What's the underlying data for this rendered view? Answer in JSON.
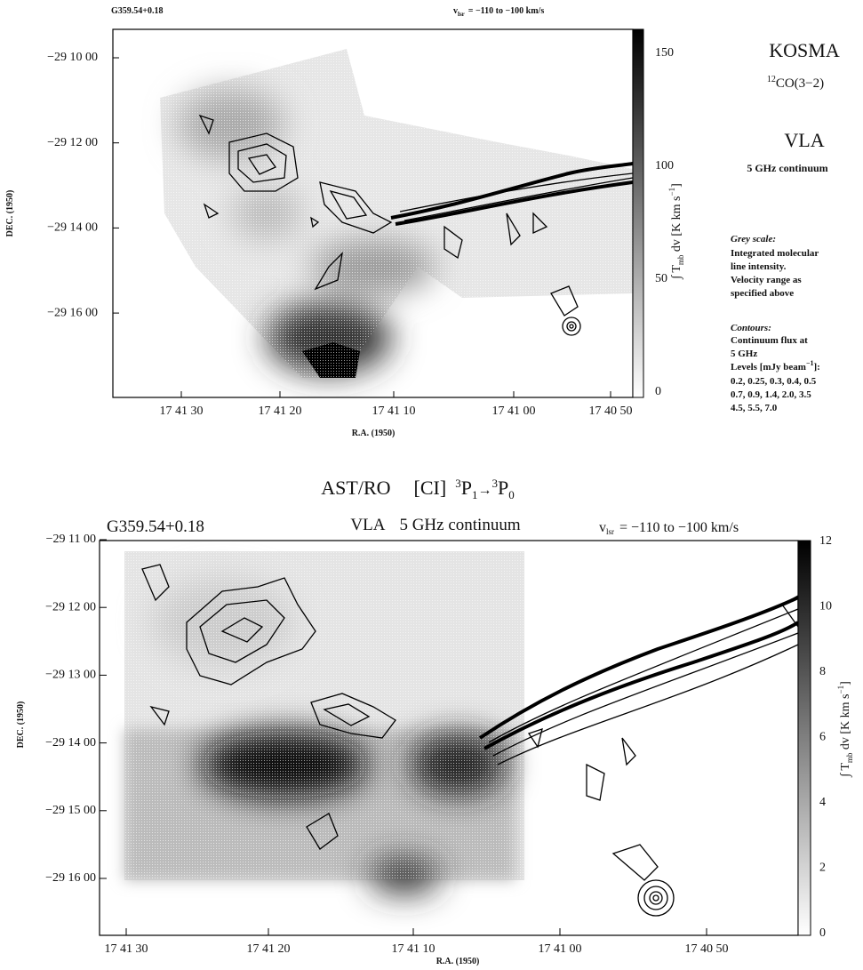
{
  "top_panel": {
    "source": "G359.54+0.18",
    "velocity_symbol": "v",
    "velocity_subscript": "lsr",
    "velocity_range": "= −110 to −100 km/s",
    "y_axis_label": "DEC. (1950)",
    "x_axis_label": "R.A. (1950)",
    "yticks": [
      "−29 10 00",
      "−29 12 00",
      "−29 14 00",
      "−29 16 00"
    ],
    "xticks": [
      "17 41 30",
      "17 41 20",
      "17 41 10",
      "17 41 00",
      "17 40 50"
    ],
    "colorbar_ticks": [
      "150",
      "100",
      "50",
      "0"
    ],
    "colorbar_label": [
      "∫ T",
      "mb",
      " dv  [K km s",
      "−1",
      "]"
    ],
    "legend": {
      "telescope": "KOSMA",
      "line_isotope": "12",
      "line_name": "CO(3−2)",
      "continuum_telescope": "VLA",
      "continuum_band": "5 GHz continuum",
      "grey_scale_heading": "Grey scale:",
      "grey_scale_lines": [
        "Integrated molecular",
        "line intensity.",
        "Velocity range as",
        "specified above"
      ],
      "contours_heading": "Contours:",
      "contour_lines": [
        "Continuum flux at",
        "5 GHz"
      ],
      "levels_label": [
        "Levels [mJy beam",
        "−1",
        "]:"
      ],
      "levels_values": [
        "0.2, 0.25, 0.3, 0.4, 0.5",
        "0.7, 0.9, 1.4, 2.0, 3.5",
        "4.5, 5.5, 7.0"
      ]
    }
  },
  "bottom_panel": {
    "title_telescope": "AST/RO",
    "title_species": "[CI]",
    "title_transition": [
      "3",
      "P",
      "1",
      "→",
      "3",
      "P",
      "0"
    ],
    "source": "G359.54+0.18",
    "continuum_telescope": "VLA",
    "continuum_band": "5 GHz continuum",
    "velocity_symbol": "v",
    "velocity_subscript": "lsr",
    "velocity_range": "= −110 to −100 km/s",
    "y_axis_label": "DEC. (1950)",
    "x_axis_label": "R.A. (1950)",
    "yticks": [
      "−29 11 00",
      "−29 12 00",
      "−29 13 00",
      "−29 14 00",
      "−29 15 00",
      "−29 16 00"
    ],
    "xticks": [
      "17 41 30",
      "17 41 20",
      "17 41 10",
      "17 41 00",
      "17 40 50"
    ],
    "colorbar_ticks": [
      "12",
      "10",
      "8",
      "6",
      "4",
      "2",
      "0"
    ],
    "colorbar_label": [
      "∫ T",
      "mb",
      " dv  [K km s",
      "−1",
      "]"
    ]
  }
}
